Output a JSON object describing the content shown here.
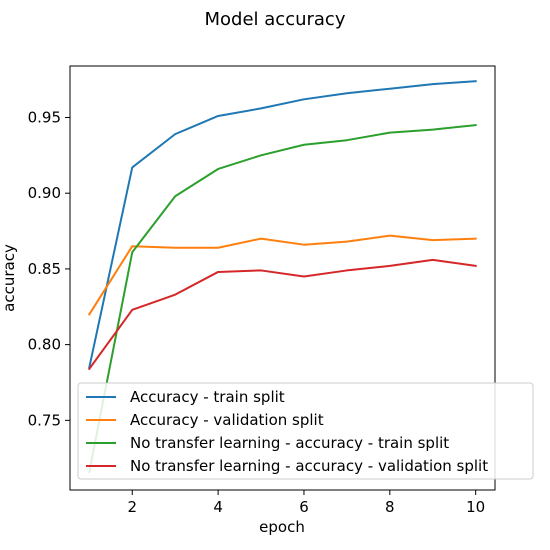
{
  "chart_data": {
    "type": "line",
    "title": "Model accuracy",
    "xlabel": "epoch",
    "ylabel": "accuracy",
    "x": [
      1,
      2,
      3,
      4,
      5,
      6,
      7,
      8,
      9,
      10
    ],
    "xlim": [
      0.55,
      10.45
    ],
    "ylim": [
      0.704,
      0.984
    ],
    "xticks": [
      2,
      4,
      6,
      8,
      10
    ],
    "yticks": [
      0.75,
      0.8,
      0.85,
      0.9,
      0.95
    ],
    "xtick_labels": [
      "2",
      "4",
      "6",
      "8",
      "10"
    ],
    "ytick_labels": [
      "0.75",
      "0.80",
      "0.85",
      "0.90",
      "0.95"
    ],
    "grid": false,
    "legend_position": "lower-right",
    "series": [
      {
        "name": "Accuracy - train split",
        "color": "#1f77b4",
        "values": [
          0.785,
          0.917,
          0.939,
          0.951,
          0.956,
          0.962,
          0.966,
          0.969,
          0.972,
          0.974
        ]
      },
      {
        "name": "Accuracy - validation split",
        "color": "#ff7f0e",
        "values": [
          0.82,
          0.865,
          0.864,
          0.864,
          0.87,
          0.866,
          0.868,
          0.872,
          0.869,
          0.87
        ]
      },
      {
        "name": "No transfer learning - accuracy - train split",
        "color": "#2ca02c",
        "values": [
          0.716,
          0.861,
          0.898,
          0.916,
          0.925,
          0.932,
          0.935,
          0.94,
          0.942,
          0.945
        ]
      },
      {
        "name": "No transfer learning - accuracy - validation split",
        "color": "#d62728",
        "values": [
          0.784,
          0.823,
          0.833,
          0.848,
          0.849,
          0.845,
          0.849,
          0.852,
          0.856,
          0.852
        ]
      }
    ]
  }
}
